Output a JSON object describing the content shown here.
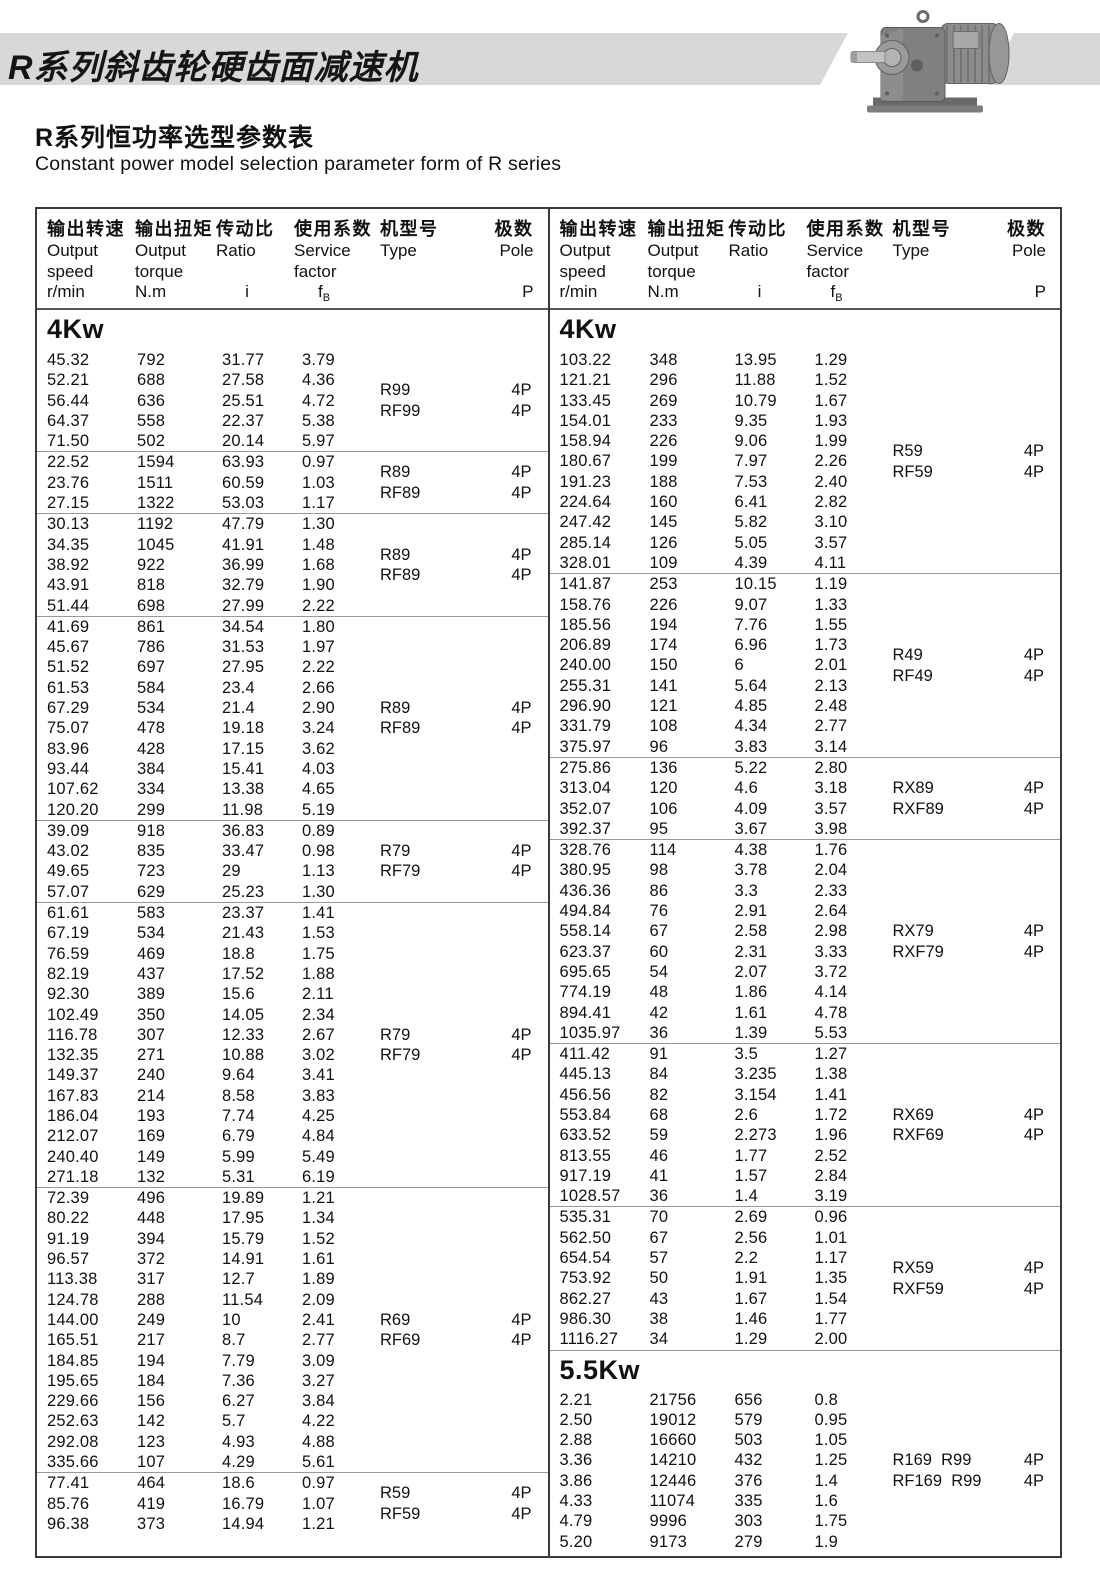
{
  "banner": {
    "title": "R系列斜齿轮硬齿面减速机"
  },
  "page_title": {
    "zh": "R系列恒功率选型参数表",
    "en": "Constant power model selection parameter form of R series"
  },
  "colors": {
    "banner_gray": "#d8d8d8",
    "border_dark": "#3a3a3a",
    "separator_gray": "#999999",
    "text": "#111111"
  },
  "table_header": {
    "col1": {
      "zh": "输出转速",
      "en1": "Output",
      "en2": "speed",
      "unit": "r/min"
    },
    "col2": {
      "zh": "输出扭矩",
      "en1": "Output",
      "en2": "torque",
      "unit": "N.m"
    },
    "col3": {
      "zh": "传动比",
      "en1": "Ratio",
      "en2": "",
      "unit": "i"
    },
    "col4": {
      "zh": "使用系数",
      "en1": "Service",
      "en2": "factor",
      "unit_sym": "f",
      "unit_sub": "B"
    },
    "col5": {
      "zh": "机型号",
      "en1": "Type"
    },
    "col6": {
      "zh": "极数",
      "en1": "Pole",
      "unit": "P"
    }
  },
  "left_column": {
    "sections": [
      {
        "label": "4Kw",
        "blocks": [
          {
            "rows": [
              [
                "45.32",
                "792",
                "31.77",
                "3.79"
              ],
              [
                "52.21",
                "688",
                "27.58",
                "4.36"
              ],
              [
                "56.44",
                "636",
                "25.51",
                "4.72"
              ],
              [
                "64.37",
                "558",
                "22.37",
                "5.38"
              ],
              [
                "71.50",
                "502",
                "20.14",
                "5.97"
              ]
            ],
            "types": [
              "R99",
              "RF99"
            ],
            "poles": [
              "4P",
              "4P"
            ]
          },
          {
            "rows": [
              [
                "22.52",
                "1594",
                "63.93",
                "0.97"
              ],
              [
                "23.76",
                "1511",
                "60.59",
                "1.03"
              ],
              [
                "27.15",
                "1322",
                "53.03",
                "1.17"
              ]
            ],
            "types": [
              "R89",
              "RF89"
            ],
            "poles": [
              "4P",
              "4P"
            ]
          },
          {
            "rows": [
              [
                "30.13",
                "1192",
                "47.79",
                "1.30"
              ],
              [
                "34.35",
                "1045",
                "41.91",
                "1.48"
              ],
              [
                "38.92",
                "922",
                "36.99",
                "1.68"
              ],
              [
                "43.91",
                "818",
                "32.79",
                "1.90"
              ],
              [
                "51.44",
                "698",
                "27.99",
                "2.22"
              ]
            ],
            "types": [
              "R89",
              "RF89"
            ],
            "poles": [
              "4P",
              "4P"
            ]
          },
          {
            "rows": [
              [
                "41.69",
                "861",
                "34.54",
                "1.80"
              ],
              [
                "45.67",
                "786",
                "31.53",
                "1.97"
              ],
              [
                "51.52",
                "697",
                "27.95",
                "2.22"
              ],
              [
                "61.53",
                "584",
                "23.4",
                "2.66"
              ],
              [
                "67.29",
                "534",
                "21.4",
                "2.90"
              ],
              [
                "75.07",
                "478",
                "19.18",
                "3.24"
              ],
              [
                "83.96",
                "428",
                "17.15",
                "3.62"
              ],
              [
                "93.44",
                "384",
                "15.41",
                "4.03"
              ],
              [
                "107.62",
                "334",
                "13.38",
                "4.65"
              ],
              [
                "120.20",
                "299",
                "11.98",
                "5.19"
              ]
            ],
            "types": [
              "R89",
              "RF89"
            ],
            "poles": [
              "4P",
              "4P"
            ]
          },
          {
            "rows": [
              [
                "39.09",
                "918",
                "36.83",
                "0.89"
              ],
              [
                "43.02",
                "835",
                "33.47",
                "0.98"
              ],
              [
                "49.65",
                "723",
                "29",
                "1.13"
              ],
              [
                "57.07",
                "629",
                "25.23",
                "1.30"
              ]
            ],
            "types": [
              "R79",
              "RF79"
            ],
            "poles": [
              "4P",
              "4P"
            ]
          },
          {
            "rows": [
              [
                "61.61",
                "583",
                "23.37",
                "1.41"
              ],
              [
                "67.19",
                "534",
                "21.43",
                "1.53"
              ],
              [
                "76.59",
                "469",
                "18.8",
                "1.75"
              ],
              [
                "82.19",
                "437",
                "17.52",
                "1.88"
              ],
              [
                "92.30",
                "389",
                "15.6",
                "2.11"
              ],
              [
                "102.49",
                "350",
                "14.05",
                "2.34"
              ],
              [
                "116.78",
                "307",
                "12.33",
                "2.67"
              ],
              [
                "132.35",
                "271",
                "10.88",
                "3.02"
              ],
              [
                "149.37",
                "240",
                "9.64",
                "3.41"
              ],
              [
                "167.83",
                "214",
                "8.58",
                "3.83"
              ],
              [
                "186.04",
                "193",
                "7.74",
                "4.25"
              ],
              [
                "212.07",
                "169",
                "6.79",
                "4.84"
              ],
              [
                "240.40",
                "149",
                "5.99",
                "5.49"
              ],
              [
                "271.18",
                "132",
                "5.31",
                "6.19"
              ]
            ],
            "types": [
              "R79",
              "RF79"
            ],
            "poles": [
              "4P",
              "4P"
            ]
          },
          {
            "rows": [
              [
                "72.39",
                "496",
                "19.89",
                "1.21"
              ],
              [
                "80.22",
                "448",
                "17.95",
                "1.34"
              ],
              [
                "91.19",
                "394",
                "15.79",
                "1.52"
              ],
              [
                "96.57",
                "372",
                "14.91",
                "1.61"
              ],
              [
                "113.38",
                "317",
                "12.7",
                "1.89"
              ],
              [
                "124.78",
                "288",
                "11.54",
                "2.09"
              ],
              [
                "144.00",
                "249",
                "10",
                "2.41"
              ],
              [
                "165.51",
                "217",
                "8.7",
                "2.77"
              ],
              [
                "184.85",
                "194",
                "7.79",
                "3.09"
              ],
              [
                "195.65",
                "184",
                "7.36",
                "3.27"
              ],
              [
                "229.66",
                "156",
                "6.27",
                "3.84"
              ],
              [
                "252.63",
                "142",
                "5.7",
                "4.22"
              ],
              [
                "292.08",
                "123",
                "4.93",
                "4.88"
              ],
              [
                "335.66",
                "107",
                "4.29",
                "5.61"
              ]
            ],
            "types": [
              "R69",
              "RF69"
            ],
            "poles": [
              "4P",
              "4P"
            ]
          },
          {
            "rows": [
              [
                "77.41",
                "464",
                "18.6",
                "0.97"
              ],
              [
                "85.76",
                "419",
                "16.79",
                "1.07"
              ],
              [
                "96.38",
                "373",
                "14.94",
                "1.21"
              ]
            ],
            "types": [
              "R59",
              "RF59"
            ],
            "poles": [
              "4P",
              "4P"
            ]
          }
        ]
      }
    ]
  },
  "right_column": {
    "sections": [
      {
        "label": "4Kw",
        "blocks": [
          {
            "rows": [
              [
                "103.22",
                "348",
                "13.95",
                "1.29"
              ],
              [
                "121.21",
                "296",
                "11.88",
                "1.52"
              ],
              [
                "133.45",
                "269",
                "10.79",
                "1.67"
              ],
              [
                "154.01",
                "233",
                "9.35",
                "1.93"
              ],
              [
                "158.94",
                "226",
                "9.06",
                "1.99"
              ],
              [
                "180.67",
                "199",
                "7.97",
                "2.26"
              ],
              [
                "191.23",
                "188",
                "7.53",
                "2.40"
              ],
              [
                "224.64",
                "160",
                "6.41",
                "2.82"
              ],
              [
                "247.42",
                "145",
                "5.82",
                "3.10"
              ],
              [
                "285.14",
                "126",
                "5.05",
                "3.57"
              ],
              [
                "328.01",
                "109",
                "4.39",
                "4.11"
              ]
            ],
            "types": [
              "R59",
              "RF59"
            ],
            "poles": [
              "4P",
              "4P"
            ]
          },
          {
            "rows": [
              [
                "141.87",
                "253",
                "10.15",
                "1.19"
              ],
              [
                "158.76",
                "226",
                "9.07",
                "1.33"
              ],
              [
                "185.56",
                "194",
                "7.76",
                "1.55"
              ],
              [
                "206.89",
                "174",
                "6.96",
                "1.73"
              ],
              [
                "240.00",
                "150",
                "6",
                "2.01"
              ],
              [
                "255.31",
                "141",
                "5.64",
                "2.13"
              ],
              [
                "296.90",
                "121",
                "4.85",
                "2.48"
              ],
              [
                "331.79",
                "108",
                "4.34",
                "2.77"
              ],
              [
                "375.97",
                "96",
                "3.83",
                "3.14"
              ]
            ],
            "types": [
              "R49",
              "RF49"
            ],
            "poles": [
              "4P",
              "4P"
            ]
          },
          {
            "rows": [
              [
                "275.86",
                "136",
                "5.22",
                "2.80"
              ],
              [
                "313.04",
                "120",
                "4.6",
                "3.18"
              ],
              [
                "352.07",
                "106",
                "4.09",
                "3.57"
              ],
              [
                "392.37",
                "95",
                "3.67",
                "3.98"
              ]
            ],
            "types": [
              "RX89",
              "RXF89"
            ],
            "poles": [
              "4P",
              "4P"
            ]
          },
          {
            "rows": [
              [
                "328.76",
                "114",
                "4.38",
                "1.76"
              ],
              [
                "380.95",
                "98",
                "3.78",
                "2.04"
              ],
              [
                "436.36",
                "86",
                "3.3",
                "2.33"
              ],
              [
                "494.84",
                "76",
                "2.91",
                "2.64"
              ],
              [
                "558.14",
                "67",
                "2.58",
                "2.98"
              ],
              [
                "623.37",
                "60",
                "2.31",
                "3.33"
              ],
              [
                "695.65",
                "54",
                "2.07",
                "3.72"
              ],
              [
                "774.19",
                "48",
                "1.86",
                "4.14"
              ],
              [
                "894.41",
                "42",
                "1.61",
                "4.78"
              ],
              [
                "1035.97",
                "36",
                "1.39",
                "5.53"
              ]
            ],
            "types": [
              "RX79",
              "RXF79"
            ],
            "poles": [
              "4P",
              "4P"
            ]
          },
          {
            "rows": [
              [
                "411.42",
                "91",
                "3.5",
                "1.27"
              ],
              [
                "445.13",
                "84",
                "3.235",
                "1.38"
              ],
              [
                "456.56",
                "82",
                "3.154",
                "1.41"
              ],
              [
                "553.84",
                "68",
                "2.6",
                "1.72"
              ],
              [
                "633.52",
                "59",
                "2.273",
                "1.96"
              ],
              [
                "813.55",
                "46",
                "1.77",
                "2.52"
              ],
              [
                "917.19",
                "41",
                "1.57",
                "2.84"
              ],
              [
                "1028.57",
                "36",
                "1.4",
                "3.19"
              ]
            ],
            "types": [
              "RX69",
              "RXF69"
            ],
            "poles": [
              "4P",
              "4P"
            ]
          },
          {
            "rows": [
              [
                "535.31",
                "70",
                "2.69",
                "0.96"
              ],
              [
                "562.50",
                "67",
                "2.56",
                "1.01"
              ],
              [
                "654.54",
                "57",
                "2.2",
                "1.17"
              ],
              [
                "753.92",
                "50",
                "1.91",
                "1.35"
              ],
              [
                "862.27",
                "43",
                "1.67",
                "1.54"
              ],
              [
                "986.30",
                "38",
                "1.46",
                "1.77"
              ],
              [
                "1116.27",
                "34",
                "1.29",
                "2.00"
              ]
            ],
            "types": [
              "RX59",
              "RXF59"
            ],
            "poles": [
              "4P",
              "4P"
            ]
          }
        ]
      },
      {
        "label": "5.5Kw",
        "blocks": [
          {
            "rows": [
              [
                "2.21",
                "21756",
                "656",
                "0.8"
              ],
              [
                "2.50",
                "19012",
                "579",
                "0.95"
              ],
              [
                "2.88",
                "16660",
                "503",
                "1.05"
              ],
              [
                "3.36",
                "14210",
                "432",
                "1.25"
              ],
              [
                "3.86",
                "12446",
                "376",
                "1.4"
              ],
              [
                "4.33",
                "11074",
                "335",
                "1.6"
              ],
              [
                "4.79",
                "9996",
                "303",
                "1.75"
              ],
              [
                "5.20",
                "9173",
                "279",
                "1.9"
              ]
            ],
            "types": [
              "R169  R99",
              "RF169  R99"
            ],
            "poles": [
              "4P",
              "4P"
            ]
          }
        ]
      }
    ]
  }
}
